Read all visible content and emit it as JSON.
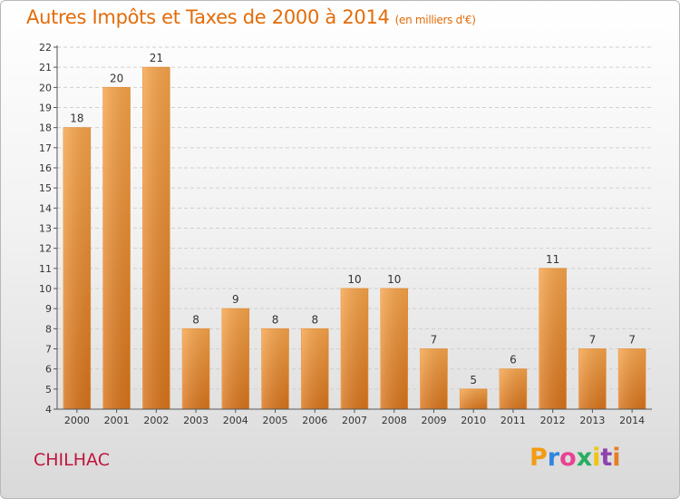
{
  "page": {
    "title": "Autres Impôts et Taxes de 2000 à 2014",
    "subtitle": "(en milliers d'€)",
    "town": "CHILHAC",
    "logo": {
      "letters": [
        "P",
        "r",
        "o",
        "x",
        "i",
        "t",
        "i"
      ],
      "colors": [
        "#f39c12",
        "#2e86de",
        "#e84393",
        "#27ae60",
        "#f1c40f",
        "#8e44ad",
        "#e67e22"
      ]
    }
  },
  "chart_data": {
    "type": "bar",
    "title": "Autres Impôts et Taxes de 2000 à 2014",
    "subtitle": "(en milliers d'€)",
    "xlabel": "",
    "ylabel": "",
    "categories": [
      "2000",
      "2001",
      "2002",
      "2003",
      "2004",
      "2005",
      "2006",
      "2007",
      "2008",
      "2009",
      "2010",
      "2011",
      "2012",
      "2013",
      "2014"
    ],
    "values": [
      18,
      20,
      21,
      8,
      9,
      8,
      8,
      10,
      10,
      7,
      5,
      6,
      11,
      7,
      7
    ],
    "ylim": [
      4,
      22
    ],
    "yticks": [
      4,
      5,
      6,
      7,
      8,
      9,
      10,
      11,
      12,
      13,
      14,
      15,
      16,
      17,
      18,
      19,
      20,
      21,
      22
    ],
    "grid": true,
    "legend": "none",
    "bar_color_top": "#f7a54b",
    "bar_color_bottom": "#d8741c"
  }
}
